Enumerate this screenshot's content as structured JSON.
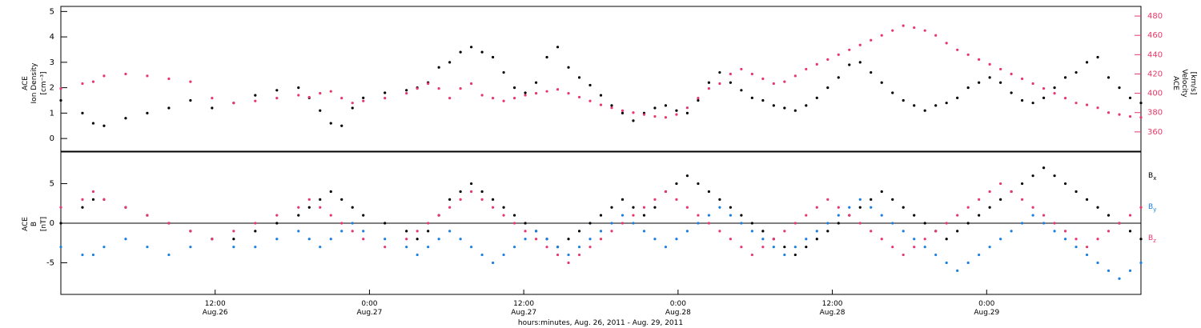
{
  "colors": {
    "black": "#000000",
    "pink": "#e8376a",
    "blue": "#1a7fe0"
  },
  "chart_data": [
    {
      "type": "scatter",
      "panel": "top",
      "x_axis": "time",
      "x_start": "2011-08-26 00:00",
      "x_end": "2011-08-29 12:00",
      "y_label_left": [
        "ACE",
        "Ion Density",
        "[cm⁻³]"
      ],
      "y_label_right": [
        "ACE",
        "Velocity",
        "[km/s]"
      ],
      "ylim_left": [
        -0.5,
        5.2
      ],
      "ylim_right": [
        340,
        490
      ],
      "yticks_left": [
        "0",
        "1",
        "2",
        "3",
        "4",
        "5"
      ],
      "yticks_right": [
        "360",
        "380",
        "400",
        "420",
        "440",
        "460",
        "480"
      ],
      "series": [
        {
          "color": "#000000",
          "axis": "left",
          "t": [
            0,
            2,
            3,
            4,
            6,
            8,
            10,
            12,
            14,
            16,
            18,
            20,
            22,
            23,
            24,
            25,
            26,
            27,
            28,
            30,
            32,
            33,
            34,
            35,
            36,
            37,
            38,
            39,
            40,
            41,
            42,
            43,
            44,
            45,
            46,
            47,
            48,
            49,
            50,
            51,
            52,
            53,
            54,
            55,
            56,
            57,
            58,
            59,
            60,
            61,
            62,
            63,
            64,
            65,
            66,
            67,
            68,
            69,
            70,
            71,
            72,
            73,
            74,
            75,
            76,
            77,
            78,
            79,
            80,
            81,
            82,
            83,
            84,
            85,
            86,
            87,
            88,
            89,
            90,
            91,
            92,
            93,
            94,
            95,
            96,
            97,
            98,
            99,
            100
          ],
          "v": [
            1.5,
            1.0,
            0.6,
            0.5,
            0.8,
            1.0,
            1.2,
            1.5,
            1.2,
            1.4,
            1.7,
            1.9,
            2.0,
            1.6,
            1.1,
            0.6,
            0.5,
            1.2,
            1.6,
            1.8,
            1.9,
            2.0,
            2.2,
            2.8,
            3.0,
            3.4,
            3.6,
            3.4,
            3.2,
            2.6,
            2.0,
            1.8,
            2.2,
            3.2,
            3.6,
            2.8,
            2.4,
            2.1,
            1.7,
            1.3,
            1.0,
            0.7,
            1.0,
            1.2,
            1.3,
            1.1,
            1.0,
            1.5,
            2.2,
            2.6,
            2.2,
            1.9,
            1.6,
            1.5,
            1.3,
            1.2,
            1.1,
            1.3,
            1.6,
            2.0,
            2.4,
            2.9,
            3.0,
            2.6,
            2.2,
            1.8,
            1.5,
            1.3,
            1.1,
            1.3,
            1.4,
            1.6,
            2.0,
            2.2,
            2.4,
            2.2,
            1.8,
            1.5,
            1.4,
            1.6,
            2.0,
            2.4,
            2.6,
            3.0,
            3.2,
            2.4,
            2.0,
            1.6,
            1.4
          ]
        },
        {
          "color": "#e8376a",
          "axis": "right",
          "t": [
            0,
            2,
            3,
            4,
            6,
            8,
            10,
            12,
            14,
            16,
            18,
            20,
            22,
            23,
            24,
            25,
            26,
            27,
            28,
            30,
            32,
            33,
            34,
            35,
            36,
            37,
            38,
            39,
            40,
            41,
            42,
            43,
            44,
            45,
            46,
            47,
            48,
            49,
            50,
            51,
            52,
            53,
            54,
            55,
            56,
            57,
            58,
            59,
            60,
            61,
            62,
            63,
            64,
            65,
            66,
            67,
            68,
            69,
            70,
            71,
            72,
            73,
            74,
            75,
            76,
            77,
            78,
            79,
            80,
            81,
            82,
            83,
            84,
            85,
            86,
            87,
            88,
            89,
            90,
            91,
            92,
            93,
            94,
            95,
            96,
            97,
            98,
            99,
            100
          ],
          "v": [
            405,
            410,
            412,
            418,
            420,
            418,
            415,
            412,
            395,
            390,
            392,
            395,
            398,
            396,
            400,
            402,
            395,
            390,
            392,
            395,
            400,
            405,
            410,
            405,
            395,
            405,
            410,
            398,
            395,
            392,
            395,
            398,
            400,
            402,
            404,
            400,
            396,
            392,
            388,
            385,
            382,
            380,
            378,
            376,
            375,
            378,
            385,
            395,
            405,
            410,
            420,
            425,
            420,
            415,
            410,
            412,
            418,
            425,
            430,
            435,
            440,
            445,
            450,
            455,
            460,
            465,
            470,
            468,
            465,
            460,
            452,
            445,
            440,
            435,
            430,
            425,
            420,
            415,
            410,
            405,
            400,
            395,
            390,
            388,
            385,
            380,
            378,
            376,
            375
          ]
        }
      ]
    },
    {
      "type": "scatter",
      "panel": "bottom",
      "x_axis": "time",
      "x_start": "2011-08-26 00:00",
      "x_end": "2011-08-29 12:00",
      "y_label_left": [
        "ACE",
        "B",
        "[nT]"
      ],
      "ylim": [
        -9,
        9
      ],
      "yticks": [
        "-5",
        "0",
        "5"
      ],
      "series": [
        {
          "name": "Bx",
          "color": "#000000",
          "t": [
            0,
            2,
            3,
            4,
            6,
            8,
            10,
            12,
            14,
            16,
            18,
            20,
            22,
            23,
            24,
            25,
            26,
            27,
            28,
            30,
            32,
            33,
            34,
            35,
            36,
            37,
            38,
            39,
            40,
            41,
            42,
            43,
            44,
            45,
            46,
            47,
            48,
            49,
            50,
            51,
            52,
            53,
            54,
            55,
            56,
            57,
            58,
            59,
            60,
            61,
            62,
            63,
            64,
            65,
            66,
            67,
            68,
            69,
            70,
            71,
            72,
            73,
            74,
            75,
            76,
            77,
            78,
            79,
            80,
            81,
            82,
            83,
            84,
            85,
            86,
            87,
            88,
            89,
            90,
            91,
            92,
            93,
            94,
            95,
            96,
            97,
            98,
            99,
            100
          ],
          "v": [
            0,
            2,
            3,
            3,
            2,
            1,
            0,
            -1,
            -2,
            -2,
            -1,
            0,
            1,
            2,
            3,
            4,
            3,
            2,
            1,
            0,
            -1,
            -2,
            -1,
            1,
            3,
            4,
            5,
            4,
            3,
            2,
            1,
            0,
            -1,
            -2,
            -3,
            -2,
            -1,
            0,
            1,
            2,
            3,
            2,
            1,
            2,
            4,
            5,
            6,
            5,
            4,
            3,
            2,
            1,
            0,
            -1,
            -2,
            -3,
            -4,
            -3,
            -2,
            -1,
            0,
            1,
            2,
            3,
            4,
            3,
            2,
            1,
            0,
            -1,
            -2,
            -1,
            0,
            1,
            2,
            3,
            4,
            5,
            6,
            7,
            6,
            5,
            4,
            3,
            2,
            1,
            0,
            -1,
            -2
          ]
        },
        {
          "name": "By",
          "color": "#1a7fe0",
          "t": [
            0,
            2,
            3,
            4,
            6,
            8,
            10,
            12,
            14,
            16,
            18,
            20,
            22,
            23,
            24,
            25,
            26,
            27,
            28,
            30,
            32,
            33,
            34,
            35,
            36,
            37,
            38,
            39,
            40,
            41,
            42,
            43,
            44,
            45,
            46,
            47,
            48,
            49,
            50,
            51,
            52,
            53,
            54,
            55,
            56,
            57,
            58,
            59,
            60,
            61,
            62,
            63,
            64,
            65,
            66,
            67,
            68,
            69,
            70,
            71,
            72,
            73,
            74,
            75,
            76,
            77,
            78,
            79,
            80,
            81,
            82,
            83,
            84,
            85,
            86,
            87,
            88,
            89,
            90,
            91,
            92,
            93,
            94,
            95,
            96,
            97,
            98,
            99,
            100
          ],
          "v": [
            -3,
            -4,
            -4,
            -3,
            -2,
            -3,
            -4,
            -3,
            -2,
            -3,
            -3,
            -2,
            -1,
            -2,
            -3,
            -2,
            -1,
            0,
            -1,
            -2,
            -3,
            -4,
            -3,
            -2,
            -1,
            -2,
            -3,
            -4,
            -5,
            -4,
            -3,
            -2,
            -1,
            -2,
            -3,
            -4,
            -3,
            -2,
            -1,
            0,
            1,
            0,
            -1,
            -2,
            -3,
            -2,
            -1,
            0,
            1,
            2,
            1,
            0,
            -1,
            -2,
            -3,
            -4,
            -3,
            -2,
            -1,
            0,
            1,
            2,
            3,
            2,
            1,
            0,
            -1,
            -2,
            -3,
            -4,
            -5,
            -6,
            -5,
            -4,
            -3,
            -2,
            -1,
            0,
            1,
            0,
            -1,
            -2,
            -3,
            -4,
            -5,
            -6,
            -7,
            -6,
            -5
          ]
        },
        {
          "name": "Bz",
          "color": "#e8376a",
          "t": [
            0,
            2,
            3,
            4,
            6,
            8,
            10,
            12,
            14,
            16,
            18,
            20,
            22,
            23,
            24,
            25,
            26,
            27,
            28,
            30,
            32,
            33,
            34,
            35,
            36,
            37,
            38,
            39,
            40,
            41,
            42,
            43,
            44,
            45,
            46,
            47,
            48,
            49,
            50,
            51,
            52,
            53,
            54,
            55,
            56,
            57,
            58,
            59,
            60,
            61,
            62,
            63,
            64,
            65,
            66,
            67,
            68,
            69,
            70,
            71,
            72,
            73,
            74,
            75,
            76,
            77,
            78,
            79,
            80,
            81,
            82,
            83,
            84,
            85,
            86,
            87,
            88,
            89,
            90,
            91,
            92,
            93,
            94,
            95,
            96,
            97,
            98,
            99,
            100
          ],
          "v": [
            2,
            3,
            4,
            3,
            2,
            1,
            0,
            -1,
            -2,
            -1,
            0,
            1,
            2,
            3,
            2,
            1,
            0,
            -1,
            -2,
            -3,
            -2,
            -1,
            0,
            1,
            2,
            3,
            4,
            3,
            2,
            1,
            0,
            -1,
            -2,
            -3,
            -4,
            -5,
            -4,
            -3,
            -2,
            -1,
            0,
            1,
            2,
            3,
            4,
            3,
            2,
            1,
            0,
            -1,
            -2,
            -3,
            -4,
            -3,
            -2,
            -1,
            0,
            1,
            2,
            3,
            2,
            1,
            0,
            -1,
            -2,
            -3,
            -4,
            -3,
            -2,
            -1,
            0,
            1,
            2,
            3,
            4,
            5,
            4,
            3,
            2,
            1,
            0,
            -1,
            -2,
            -3,
            -2,
            -1,
            0,
            1,
            2
          ]
        }
      ],
      "legend": [
        "B",
        "B",
        "B"
      ],
      "legend_subscripts": [
        "x",
        "y",
        "z"
      ]
    }
  ],
  "x_tick_labels": [
    {
      "time": "12:00",
      "date": "Aug.26"
    },
    {
      "time": "0:00",
      "date": "Aug.27"
    },
    {
      "time": "12:00",
      "date": "Aug.27"
    },
    {
      "time": "0:00",
      "date": "Aug.28"
    },
    {
      "time": "12:00",
      "date": "Aug.28"
    },
    {
      "time": "0:00",
      "date": "Aug.29"
    }
  ],
  "x_axis_title": "hours:minutes, Aug. 26, 2011 - Aug. 29, 2011"
}
